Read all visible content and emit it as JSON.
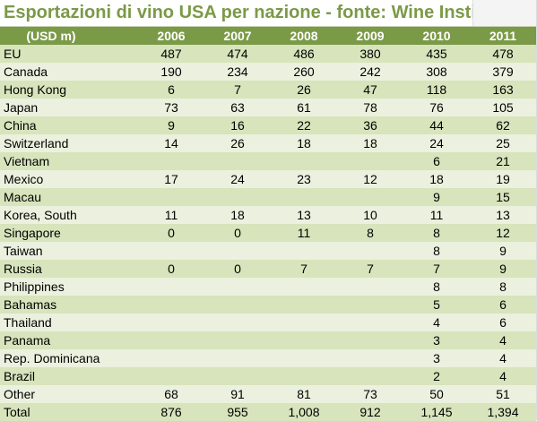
{
  "title": "Esportazioni di vino USA per nazione - fonte: Wine Institute",
  "header": [
    "(USD m)",
    "2006",
    "2007",
    "2008",
    "2009",
    "2010",
    "2011"
  ],
  "rows": [
    [
      "EU",
      "487",
      "474",
      "486",
      "380",
      "435",
      "478"
    ],
    [
      "Canada",
      "190",
      "234",
      "260",
      "242",
      "308",
      "379"
    ],
    [
      "Hong Kong",
      "6",
      "7",
      "26",
      "47",
      "118",
      "163"
    ],
    [
      "Japan",
      "73",
      "63",
      "61",
      "78",
      "76",
      "105"
    ],
    [
      "China",
      "9",
      "16",
      "22",
      "36",
      "44",
      "62"
    ],
    [
      "Switzerland",
      "14",
      "26",
      "18",
      "18",
      "24",
      "25"
    ],
    [
      "Vietnam",
      "",
      "",
      "",
      "",
      "6",
      "21"
    ],
    [
      "Mexico",
      "17",
      "24",
      "23",
      "12",
      "18",
      "19"
    ],
    [
      "Macau",
      "",
      "",
      "",
      "",
      "9",
      "15"
    ],
    [
      "Korea, South",
      "11",
      "18",
      "13",
      "10",
      "11",
      "13"
    ],
    [
      "Singapore",
      "0",
      "0",
      "11",
      "8",
      "8",
      "12"
    ],
    [
      "Taiwan",
      "",
      "",
      "",
      "",
      "8",
      "9"
    ],
    [
      "Russia",
      "0",
      "0",
      "7",
      "7",
      "7",
      "9"
    ],
    [
      "Philippines",
      "",
      "",
      "",
      "",
      "8",
      "8"
    ],
    [
      "Bahamas",
      "",
      "",
      "",
      "",
      "5",
      "6"
    ],
    [
      "Thailand",
      "",
      "",
      "",
      "",
      "4",
      "6"
    ],
    [
      "Panama",
      "",
      "",
      "",
      "",
      "3",
      "4"
    ],
    [
      "Rep. Dominicana",
      "",
      "",
      "",
      "",
      "3",
      "4"
    ],
    [
      "Brazil",
      "",
      "",
      "",
      "",
      "2",
      "4"
    ],
    [
      "Other",
      "68",
      "91",
      "81",
      "73",
      "50",
      "51"
    ],
    [
      "Total",
      "876",
      "955",
      "1,008",
      "912",
      "1,145",
      "1,394"
    ]
  ],
  "colors": {
    "title_text": "#7b9a47",
    "header_bg": "#7b9a47",
    "header_text": "#ffffff",
    "row_band_dark": "#d7e4bc",
    "row_band_light": "#ebf1de"
  }
}
